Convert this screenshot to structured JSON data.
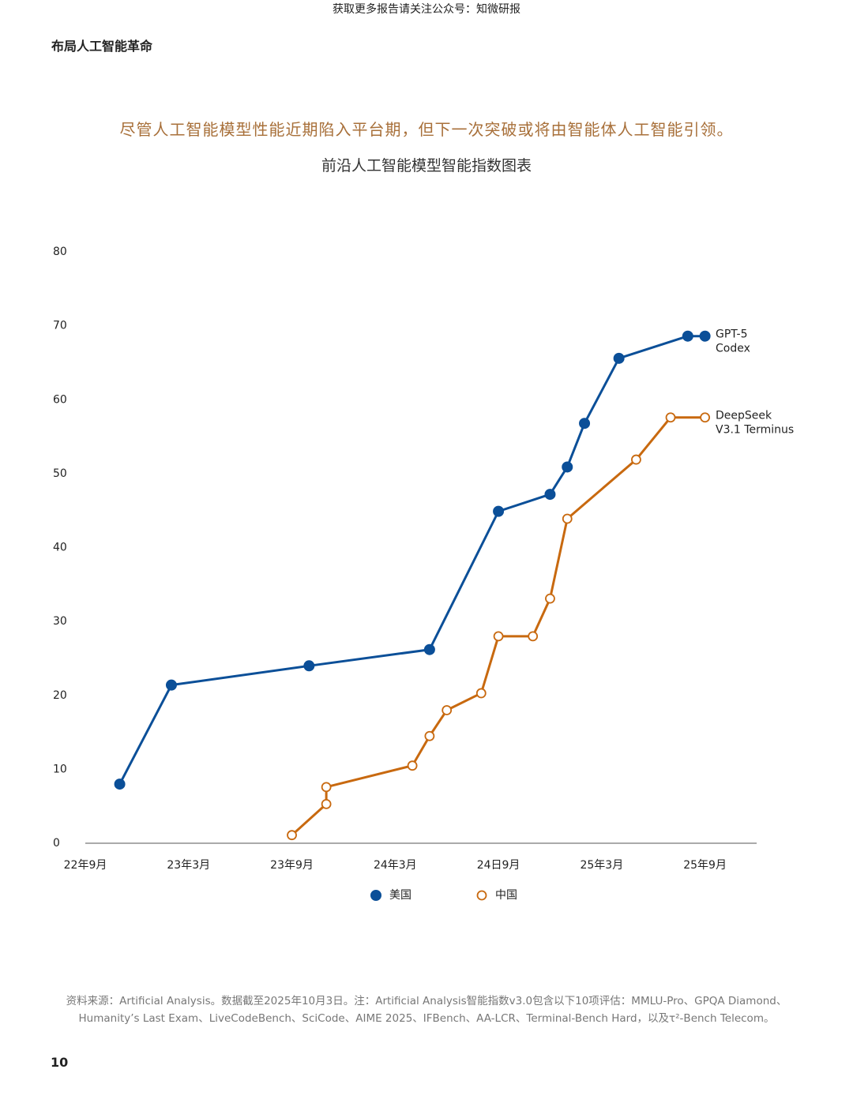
{
  "header": {
    "watermark": "获取更多报告请关注公众号：知微研报",
    "section": "布局人工智能革命"
  },
  "headline": "尽管人工智能模型性能近期陷入平台期，但下一次突破或将由智能体人工智能引领。",
  "chart_data": {
    "type": "line",
    "title": "前沿人工智能模型智能指数图表",
    "xlim": [
      "2022-09",
      "2025-12"
    ],
    "xticks": [
      {
        "value": "2022-09",
        "label": "22年9月"
      },
      {
        "value": "2023-03",
        "label": "23年3月"
      },
      {
        "value": "2023-09",
        "label": "23年9月"
      },
      {
        "value": "2024-03",
        "label": "24年3月"
      },
      {
        "value": "2024-09",
        "label": "24日9月"
      },
      {
        "value": "2025-03",
        "label": "25年3月"
      },
      {
        "value": "2025-09",
        "label": "25年9月"
      }
    ],
    "ylim": [
      0,
      80
    ],
    "yticks": [
      0,
      10,
      20,
      30,
      40,
      50,
      60,
      70,
      80
    ],
    "grid": false,
    "legend": "bottom",
    "series": [
      {
        "name": "美国",
        "color": "#0b4f98",
        "marker": "filled",
        "label": [
          "GPT-5",
          "Codex"
        ],
        "x": [
          "2022-11",
          "2023-02",
          "2023-10",
          "2024-05",
          "2024-09",
          "2024-12",
          "2025-01",
          "2025-02",
          "2025-04",
          "2025-08",
          "2025-09"
        ],
        "values": [
          8.0,
          21.4,
          24.0,
          26.2,
          44.9,
          47.2,
          50.9,
          56.8,
          65.6,
          68.6,
          68.6
        ]
      },
      {
        "name": "中国",
        "color": "#c8690f",
        "marker": "hollow",
        "label": [
          "DeepSeek",
          "V3.1 Terminus"
        ],
        "x": [
          "2023-09",
          "2023-11",
          "2023-11",
          "2024-04",
          "2024-05",
          "2024-06",
          "2024-08",
          "2024-09",
          "2024-11",
          "2024-12",
          "2025-01",
          "2025-05",
          "2025-07",
          "2025-09"
        ],
        "values": [
          1.1,
          5.3,
          7.6,
          10.5,
          14.5,
          18.0,
          20.3,
          28.0,
          28.0,
          33.1,
          43.9,
          51.9,
          57.6,
          57.6
        ]
      }
    ]
  },
  "footnote": [
    "资料来源：Artificial Analysis。数据截至2025年10月3日。注：Artificial Analysis智能指数v3.0包含以下10项评估：MMLU-Pro、GPQA Diamond、",
    "Humanity’s Last Exam、LiveCodeBench、SciCode、AIME 2025、IFBench、AA-LCR、Terminal-Bench Hard，以及τ²-Bench Telecom。"
  ],
  "page_number": 10
}
